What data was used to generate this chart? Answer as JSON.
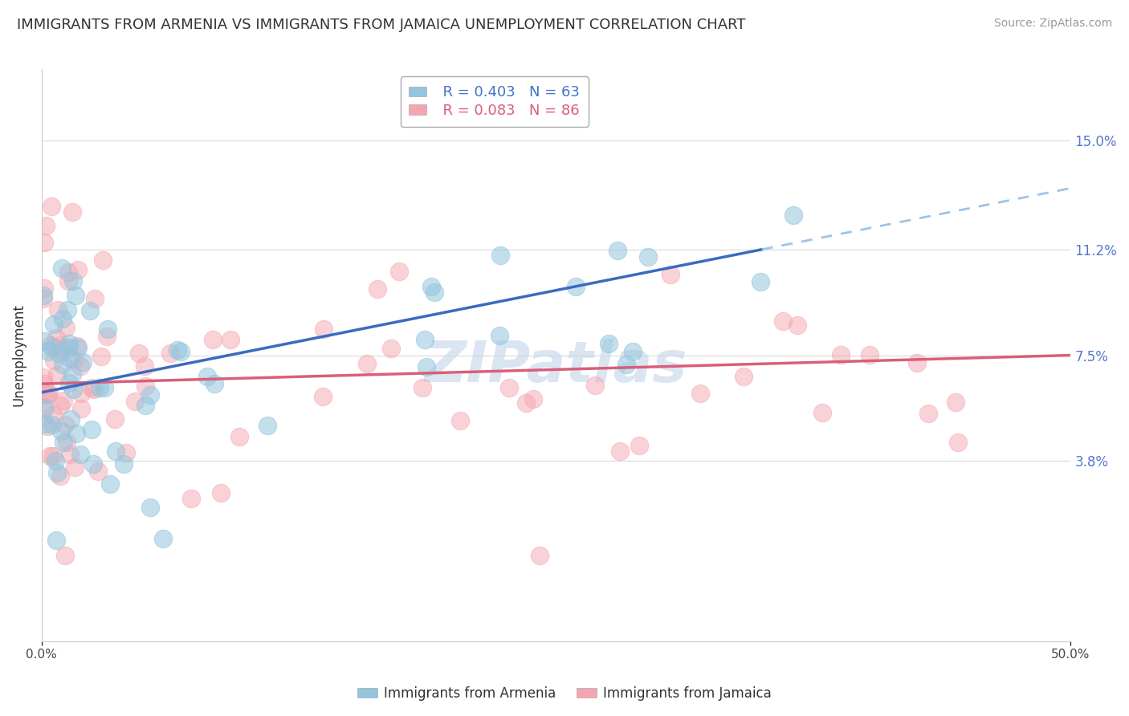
{
  "title": "IMMIGRANTS FROM ARMENIA VS IMMIGRANTS FROM JAMAICA UNEMPLOYMENT CORRELATION CHART",
  "source": "Source: ZipAtlas.com",
  "ylabel": "Unemployment",
  "xlim": [
    0.0,
    0.5
  ],
  "ylim": [
    -0.025,
    0.175
  ],
  "yticks": [
    0.038,
    0.075,
    0.112,
    0.15
  ],
  "ytick_labels": [
    "3.8%",
    "7.5%",
    "11.2%",
    "15.0%"
  ],
  "xticks": [
    0.0,
    0.5
  ],
  "xtick_labels": [
    "0.0%",
    "50.0%"
  ],
  "color_armenia": "#92c5de",
  "color_jamaica": "#f4a6b0",
  "legend_R_armenia": "R = 0.403",
  "legend_N_armenia": "N = 63",
  "legend_R_jamaica": "R = 0.083",
  "legend_N_jamaica": "N = 86",
  "watermark": "ZIPatlas",
  "title_fontsize": 13,
  "source_fontsize": 10,
  "axis_label_fontsize": 12,
  "tick_fontsize": 11,
  "legend_fontsize": 13,
  "watermark_fontsize": 52,
  "grid_color": "#e0e0e0",
  "background_color": "#ffffff",
  "line_armenia_color": "#3a6bbf",
  "line_jamaica_color": "#d95f7a",
  "line_dashed_color": "#9ec4e8"
}
